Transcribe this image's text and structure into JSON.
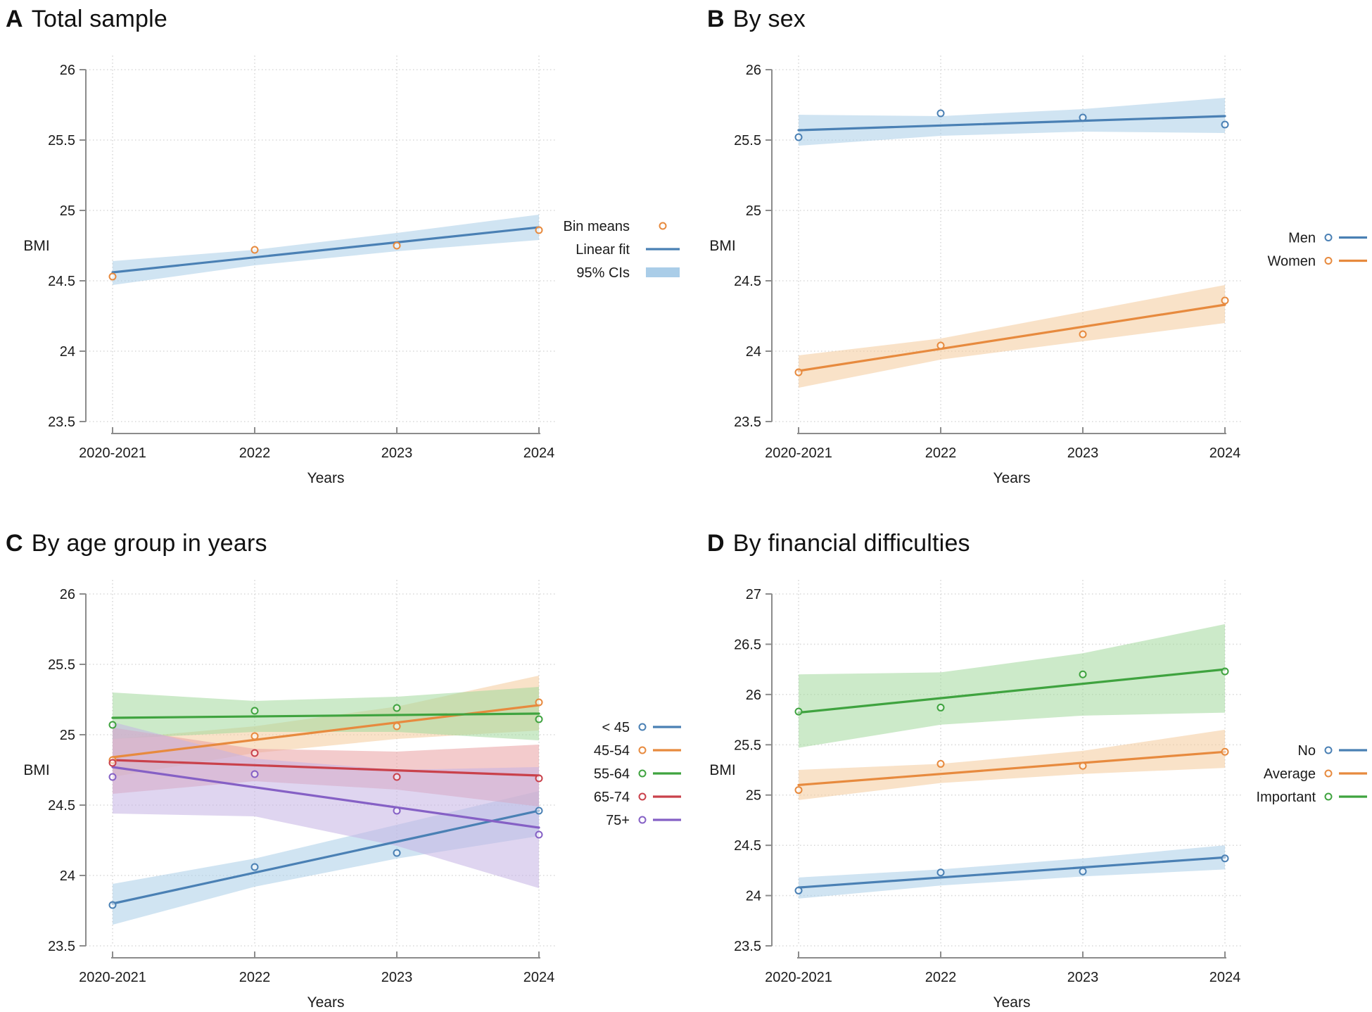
{
  "chart_data": [
    {
      "panel": "A",
      "title_letter": "A",
      "title": "Total sample",
      "type": "line",
      "xlabel": "Years",
      "ylabel": "BMI",
      "x_categories": [
        "2020-2021",
        "2022",
        "2023",
        "2024"
      ],
      "ylim": [
        23.5,
        26
      ],
      "yticks": [
        "23.5",
        "24",
        "24.5",
        "25",
        "25.5",
        "26"
      ],
      "grid": "dotted",
      "legend_position": "right-middle",
      "legend": [
        {
          "label": "Bin means",
          "marker": "circle",
          "color": "#e78a3e"
        },
        {
          "label": "Linear fit",
          "marker": "line",
          "color": "#4a80b4"
        },
        {
          "label": "95% CIs",
          "marker": "band",
          "color": "#aacde8"
        }
      ],
      "series": [
        {
          "name": "Total sample",
          "line_color": "#4a80b4",
          "band_color": "#aacde8",
          "point_color": "#e78a3e",
          "bin_means": [
            24.53,
            24.72,
            24.75,
            24.86
          ],
          "linear_fit": [
            24.56,
            24.88
          ],
          "ci_lower": [
            24.47,
            24.61,
            24.71,
            24.79
          ],
          "ci_upper": [
            24.64,
            24.72,
            24.84,
            24.97
          ]
        }
      ]
    },
    {
      "panel": "B",
      "title_letter": "B",
      "title": "By sex",
      "type": "line",
      "xlabel": "Years",
      "ylabel": "BMI",
      "x_categories": [
        "2020-2021",
        "2022",
        "2023",
        "2024"
      ],
      "ylim": [
        23.5,
        26
      ],
      "yticks": [
        "23.5",
        "24",
        "24.5",
        "25",
        "25.5",
        "26"
      ],
      "grid": "dotted",
      "legend_position": "right-middle",
      "legend": [
        {
          "label": "Men",
          "marker": "circle+line",
          "color": "#4a80b4"
        },
        {
          "label": "Women",
          "marker": "circle+line",
          "color": "#e78a3e"
        }
      ],
      "series": [
        {
          "name": "Men",
          "line_color": "#4a80b4",
          "band_color": "#aacde8",
          "point_color": "#4a80b4",
          "bin_means": [
            25.52,
            25.69,
            25.66,
            25.61
          ],
          "linear_fit": [
            25.57,
            25.67
          ],
          "ci_lower": [
            25.46,
            25.53,
            25.56,
            25.55
          ],
          "ci_upper": [
            25.68,
            25.67,
            25.72,
            25.8
          ]
        },
        {
          "name": "Women",
          "line_color": "#e78a3e",
          "band_color": "#f4cb9a",
          "point_color": "#e78a3e",
          "bin_means": [
            23.85,
            24.04,
            24.12,
            24.36
          ],
          "linear_fit": [
            23.86,
            24.33
          ],
          "ci_lower": [
            23.74,
            23.94,
            24.07,
            24.2
          ],
          "ci_upper": [
            23.97,
            24.09,
            24.28,
            24.47
          ]
        }
      ]
    },
    {
      "panel": "C",
      "title_letter": "C",
      "title": "By age group in years",
      "type": "line",
      "xlabel": "Years",
      "ylabel": "BMI",
      "x_categories": [
        "2020-2021",
        "2022",
        "2023",
        "2024"
      ],
      "ylim": [
        23.5,
        26
      ],
      "yticks": [
        "23.5",
        "24",
        "24.5",
        "25",
        "25.5",
        "26"
      ],
      "grid": "dotted",
      "legend_position": "right-middle",
      "legend": [
        {
          "label": "< 45",
          "marker": "circle+line",
          "color": "#4a80b4"
        },
        {
          "label": "45-54",
          "marker": "circle+line",
          "color": "#e78a3e"
        },
        {
          "label": "55-64",
          "marker": "circle+line",
          "color": "#3fa33f"
        },
        {
          "label": "65-74",
          "marker": "circle+line",
          "color": "#c9414b"
        },
        {
          "label": "75+",
          "marker": "circle+line",
          "color": "#8560c5"
        }
      ],
      "series": [
        {
          "name": "< 45",
          "line_color": "#4a80b4",
          "band_color": "#aacde8",
          "point_color": "#4a80b4",
          "bin_means": [
            23.79,
            24.06,
            24.16,
            24.46
          ],
          "linear_fit": [
            23.8,
            24.46
          ],
          "ci_lower": [
            23.65,
            23.92,
            24.12,
            24.28
          ],
          "ci_upper": [
            23.94,
            24.12,
            24.36,
            24.6
          ]
        },
        {
          "name": "45-54",
          "line_color": "#e78a3e",
          "band_color": "#f4cb9a",
          "point_color": "#e78a3e",
          "bin_means": [
            24.82,
            24.99,
            25.06,
            25.23
          ],
          "linear_fit": [
            24.84,
            25.21
          ],
          "ci_lower": [
            24.7,
            24.87,
            24.97,
            25.03
          ],
          "ci_upper": [
            24.97,
            25.06,
            25.2,
            25.42
          ]
        },
        {
          "name": "55-64",
          "line_color": "#3fa33f",
          "band_color": "#a2d89d",
          "point_color": "#3fa33f",
          "bin_means": [
            25.07,
            25.17,
            25.19,
            25.11
          ],
          "linear_fit": [
            25.12,
            25.15
          ],
          "ci_lower": [
            24.97,
            25.02,
            25.02,
            24.96
          ],
          "ci_upper": [
            25.3,
            25.24,
            25.27,
            25.34
          ]
        },
        {
          "name": "65-74",
          "line_color": "#c9414b",
          "band_color": "#e9a0a2",
          "point_color": "#c9414b",
          "bin_means": [
            24.8,
            24.87,
            24.7,
            24.69
          ],
          "linear_fit": [
            24.82,
            24.71
          ],
          "ci_lower": [
            24.58,
            24.67,
            24.61,
            24.49
          ],
          "ci_upper": [
            25.05,
            24.9,
            24.88,
            24.93
          ]
        },
        {
          "name": "75+",
          "line_color": "#8560c5",
          "band_color": "#c4b2e4",
          "point_color": "#8560c5",
          "bin_means": [
            24.7,
            24.72,
            24.46,
            24.29
          ],
          "linear_fit": [
            24.77,
            24.34
          ],
          "ci_lower": [
            24.44,
            24.42,
            24.21,
            23.91
          ],
          "ci_upper": [
            25.09,
            24.83,
            24.75,
            24.77
          ]
        }
      ]
    },
    {
      "panel": "D",
      "title_letter": "D",
      "title": "By financial difficulties",
      "type": "line",
      "xlabel": "Years",
      "ylabel": "BMI",
      "x_categories": [
        "2020-2021",
        "2022",
        "2023",
        "2024"
      ],
      "ylim": [
        23.5,
        27
      ],
      "yticks": [
        "23.5",
        "24",
        "24.5",
        "25",
        "25.5",
        "26",
        "26.5",
        "27"
      ],
      "grid": "dotted",
      "legend_position": "right-middle",
      "legend": [
        {
          "label": "No",
          "marker": "circle+line",
          "color": "#4a80b4"
        },
        {
          "label": "Average",
          "marker": "circle+line",
          "color": "#e78a3e"
        },
        {
          "label": "Important",
          "marker": "circle+line",
          "color": "#3fa33f"
        }
      ],
      "series": [
        {
          "name": "No",
          "line_color": "#4a80b4",
          "band_color": "#aacde8",
          "point_color": "#4a80b4",
          "bin_means": [
            24.05,
            24.23,
            24.24,
            24.37
          ],
          "linear_fit": [
            24.08,
            24.38
          ],
          "ci_lower": [
            23.97,
            24.1,
            24.19,
            24.26
          ],
          "ci_upper": [
            24.18,
            24.26,
            24.37,
            24.5
          ]
        },
        {
          "name": "Average",
          "line_color": "#e78a3e",
          "band_color": "#f4cb9a",
          "point_color": "#e78a3e",
          "bin_means": [
            25.05,
            25.31,
            25.29,
            25.43
          ],
          "linear_fit": [
            25.1,
            25.43
          ],
          "ci_lower": [
            24.95,
            25.12,
            25.21,
            25.27
          ],
          "ci_upper": [
            25.25,
            25.31,
            25.44,
            25.65
          ]
        },
        {
          "name": "Important",
          "line_color": "#3fa33f",
          "band_color": "#a2d89d",
          "point_color": "#3fa33f",
          "bin_means": [
            25.83,
            25.87,
            26.2,
            26.23
          ],
          "linear_fit": [
            25.82,
            26.25
          ],
          "ci_lower": [
            25.47,
            25.7,
            25.79,
            25.82
          ],
          "ci_upper": [
            26.2,
            26.22,
            26.41,
            26.7
          ]
        }
      ]
    }
  ],
  "style": {
    "grid_color": "#d9d9d9",
    "axis_color": "#8c8c8c",
    "text_color": "#1a1a1a"
  }
}
